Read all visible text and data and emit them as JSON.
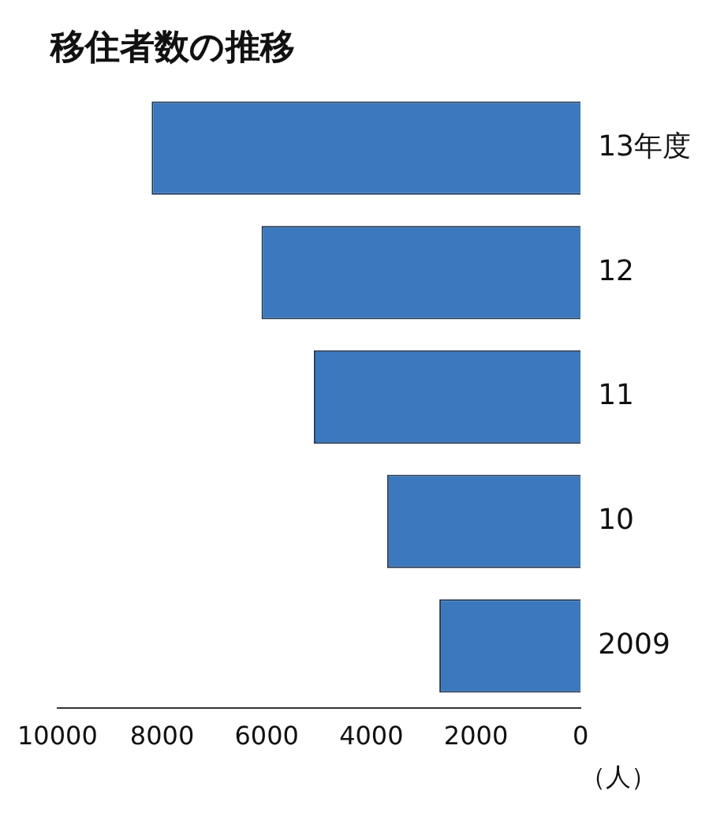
{
  "chart_data": {
    "type": "bar",
    "orientation": "horizontal",
    "title": "移住者数の推移",
    "xlabel": "（人）",
    "categories": [
      "13年度",
      "12",
      "11",
      "10",
      "2009"
    ],
    "values": [
      8200,
      6100,
      5100,
      3700,
      2700
    ],
    "color": "#3b78be",
    "xlim": [
      10000,
      0
    ],
    "xticks": [
      10000,
      8000,
      6000,
      4000,
      2000,
      0
    ],
    "grid": false,
    "legend": false
  }
}
